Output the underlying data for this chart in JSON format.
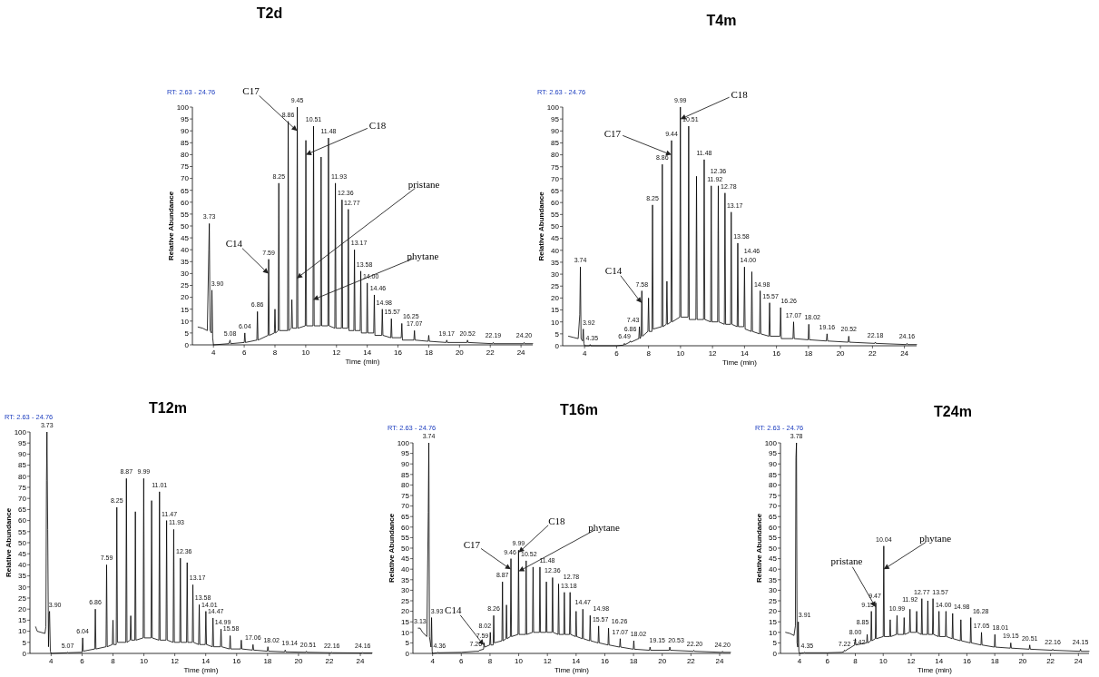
{
  "chart_data": [
    {
      "type": "line",
      "title": "T2d",
      "xlabel": "Time (min)",
      "ylabel": "Relative Abundance",
      "xlim": [
        2.63,
        24.76
      ],
      "ylim": [
        0,
        100
      ],
      "xticks": [
        4,
        6,
        8,
        10,
        12,
        14,
        16,
        18,
        20,
        22,
        24
      ],
      "yticks": [
        0,
        5,
        10,
        15,
        20,
        25,
        30,
        35,
        40,
        45,
        50,
        55,
        60,
        65,
        70,
        75,
        80,
        85,
        90,
        95,
        100
      ],
      "series": [
        {
          "color": "#000000",
          "x": [
            3,
            3.3,
            3.6,
            3.7,
            3.73,
            3.78,
            3.87,
            3.9,
            3.95,
            4,
            5,
            5.08,
            5.12,
            6,
            6.04,
            6.08,
            6.82,
            6.86,
            6.9,
            7.55,
            7.59,
            7.63,
            7.96,
            8,
            8.04,
            8.21,
            8.25,
            8.29,
            8.82,
            8.86,
            8.9,
            9.06,
            9.1,
            9.14,
            9.41,
            9.45,
            9.49,
            9.97,
            10.01,
            10.05,
            10.47,
            10.51,
            10.55,
            10.96,
            11,
            11.04,
            11.44,
            11.48,
            11.52,
            11.89,
            11.93,
            11.97,
            12.32,
            12.36,
            12.4,
            12.73,
            12.77,
            12.81,
            13.13,
            13.17,
            13.21,
            13.54,
            13.58,
            13.62,
            13.96,
            14,
            14.04,
            14.42,
            14.46,
            14.5,
            14.94,
            14.98,
            15.02,
            15.53,
            15.57,
            15.61,
            16.21,
            16.25,
            16.29,
            17.03,
            17.07,
            17.11,
            17.96,
            18,
            18.04,
            19.13,
            19.17,
            19.21,
            20.48,
            20.52,
            20.56,
            22.15,
            22.19,
            22.23,
            24.16,
            24.2,
            24.24,
            24.76
          ],
          "values": [
            7.5,
            7,
            6,
            40,
            51,
            6,
            5,
            23,
            3,
            0,
            0.5,
            2,
            0.5,
            1,
            5,
            1,
            2,
            14,
            2,
            4,
            36,
            4,
            5,
            15,
            5,
            6,
            68,
            6,
            6,
            94,
            6,
            7,
            19,
            7,
            7,
            100,
            7,
            8,
            86,
            8,
            8,
            92,
            8,
            8,
            79,
            8,
            8,
            87,
            8,
            7,
            68,
            7,
            7,
            61,
            7,
            7,
            57,
            6,
            6,
            40,
            6,
            6,
            31,
            5,
            5,
            26,
            5,
            5,
            21,
            4,
            4,
            15,
            4,
            3,
            11,
            3,
            3,
            9,
            2,
            2,
            6,
            2,
            1.5,
            4,
            1.5,
            1,
            2,
            1,
            1,
            2,
            1,
            0.5,
            1,
            0.5,
            0.5,
            1,
            0.5,
            0.5
          ]
        }
      ],
      "annotations": [
        "RT: 2.63 - 24.76",
        {
          "text": "C17",
          "x": 9.446,
          "y": 90
        },
        {
          "text": "C18",
          "x": 10.007,
          "y": 80
        },
        {
          "text": "pristane",
          "x": 9.419,
          "y": 28
        },
        {
          "text": "phytane",
          "x": 10.475,
          "y": 19
        },
        {
          "text": "C14",
          "x": 7.583,
          "y": 30
        },
        {
          "text": "3.73",
          "x": 3.73,
          "y": 51
        },
        {
          "text": "3.90",
          "x": 3.9,
          "y": 23
        },
        {
          "text": "5.08",
          "x": 5.08,
          "y": 2
        },
        {
          "text": "6.04",
          "x": 6.04,
          "y": 5
        },
        {
          "text": "6.86",
          "x": 6.86,
          "y": 14
        },
        {
          "text": "7.59",
          "x": 7.59,
          "y": 36
        },
        {
          "text": "8.25",
          "x": 8.25,
          "y": 68
        },
        {
          "text": "8.86",
          "x": 8.86,
          "y": 94
        },
        {
          "text": "9.45",
          "x": 9.45,
          "y": 100
        },
        {
          "text": "10.51",
          "x": 10.51,
          "y": 92
        },
        {
          "text": "11.48",
          "x": 11.48,
          "y": 87
        },
        {
          "text": "11.93",
          "x": 11.93,
          "y": 68
        },
        {
          "text": "12.36",
          "x": 12.36,
          "y": 61
        },
        {
          "text": "12.77",
          "x": 12.77,
          "y": 57
        },
        {
          "text": "13.17",
          "x": 13.17,
          "y": 40
        },
        {
          "text": "13.58",
          "x": 13.58,
          "y": 31
        },
        {
          "text": "14.00",
          "x": 14,
          "y": 26
        },
        {
          "text": "14.46",
          "x": 14.46,
          "y": 21
        },
        {
          "text": "14.98",
          "x": 14.98,
          "y": 15
        },
        {
          "text": "15.57",
          "x": 15.57,
          "y": 11
        },
        {
          "text": "16.25",
          "x": 16.25,
          "y": 9
        },
        {
          "text": "17.07",
          "x": 17.07,
          "y": 6
        },
        {
          "text": "19.17",
          "x": 19.17,
          "y": 2
        },
        {
          "text": "20.52",
          "x": 20.52,
          "y": 2
        },
        {
          "text": "22.19",
          "x": 22.19,
          "y": 1
        },
        {
          "text": "24.20",
          "x": 24.2,
          "y": 1
        }
      ]
    },
    {
      "type": "line",
      "title": "T4m",
      "xlabel": "Time (min)",
      "ylabel": "Relative Abundance",
      "xlim": [
        2.63,
        24.76
      ],
      "ylim": [
        0,
        100
      ],
      "xticks": [
        4,
        6,
        8,
        10,
        12,
        14,
        16,
        18,
        20,
        22,
        24
      ],
      "yticks": [
        0,
        5,
        10,
        15,
        20,
        25,
        30,
        35,
        40,
        45,
        50,
        55,
        60,
        65,
        70,
        75,
        80,
        85,
        90,
        95,
        100
      ],
      "series": [
        {
          "color": "#000000",
          "x": [
            3,
            3.3,
            3.6,
            3.7,
            3.74,
            3.78,
            3.88,
            3.92,
            3.96,
            4,
            4.31,
            4.35,
            4.39,
            6,
            6.45,
            6.49,
            6.53,
            6.82,
            6.86,
            6.9,
            7.39,
            7.43,
            7.47,
            7.54,
            7.58,
            7.62,
            7.96,
            8,
            8.04,
            8.21,
            8.25,
            8.29,
            8.82,
            8.86,
            8.9,
            9.11,
            9.15,
            9.19,
            9.4,
            9.44,
            9.48,
            9.95,
            9.99,
            10.03,
            10.47,
            10.51,
            10.55,
            10.96,
            11,
            11.04,
            11.44,
            11.48,
            11.52,
            11.88,
            11.92,
            11.96,
            12.32,
            12.36,
            12.4,
            12.74,
            12.78,
            12.82,
            13.13,
            13.17,
            13.21,
            13.54,
            13.58,
            13.62,
            13.96,
            14,
            14.04,
            14.42,
            14.46,
            14.5,
            14.94,
            14.98,
            15.02,
            15.53,
            15.57,
            15.61,
            16.22,
            16.26,
            16.3,
            17.03,
            17.07,
            17.11,
            17.98,
            18.02,
            18.06,
            19.12,
            19.16,
            19.2,
            20.48,
            20.52,
            20.56,
            22.14,
            22.18,
            22.22,
            24.12,
            24.16,
            24.2,
            24.76
          ],
          "values": [
            4,
            3.5,
            3,
            13,
            33,
            3,
            2,
            7,
            1,
            0,
            0,
            0.5,
            0,
            0,
            0.3,
            1,
            0.5,
            1.5,
            2,
            1.5,
            3,
            8,
            3,
            4,
            23,
            4,
            6,
            20,
            6,
            6,
            59,
            7,
            8,
            76,
            8,
            9,
            27,
            9,
            10,
            86,
            10,
            12,
            100,
            12,
            12,
            92,
            11,
            11,
            71,
            11,
            11,
            78,
            11,
            10,
            67,
            10,
            10,
            67,
            10,
            9,
            64,
            9,
            9,
            56,
            9,
            8,
            43,
            8,
            8,
            33,
            7,
            6,
            31,
            6,
            5,
            23,
            5,
            4,
            18,
            4,
            4,
            16,
            3,
            3,
            10,
            3,
            2.5,
            9,
            2.5,
            2,
            5,
            2,
            1.5,
            4,
            1.5,
            1,
            1.5,
            1,
            0.5,
            1,
            0.5,
            0.5
          ]
        }
      ],
      "annotations": [
        "RT: 2.63 - 24.76",
        {
          "text": "C17",
          "x": 9.437,
          "y": 80
        },
        {
          "text": "C18",
          "x": 9.988,
          "y": 95
        },
        {
          "text": "C14",
          "x": 7.569,
          "y": 18
        },
        {
          "text": "3.74",
          "x": 3.74,
          "y": 33
        },
        {
          "text": "3.92",
          "x": 3.92,
          "y": 7
        },
        {
          "text": "4.35",
          "x": 4.35,
          "y": 0.5
        },
        {
          "text": "6.49",
          "x": 6.49,
          "y": 1
        },
        {
          "text": "6.86",
          "x": 6.86,
          "y": 2
        },
        {
          "text": "7.43",
          "x": 7.43,
          "y": 8
        },
        {
          "text": "7.58",
          "x": 7.58,
          "y": 23
        },
        {
          "text": "8.25",
          "x": 8.25,
          "y": 59
        },
        {
          "text": "8.86",
          "x": 8.86,
          "y": 76
        },
        {
          "text": "9.44",
          "x": 9.44,
          "y": 86
        },
        {
          "text": "9.99",
          "x": 9.99,
          "y": 100
        },
        {
          "text": "10.51",
          "x": 10.51,
          "y": 92
        },
        {
          "text": "11.48",
          "x": 11.48,
          "y": 78
        },
        {
          "text": "11.92",
          "x": 11.92,
          "y": 67
        },
        {
          "text": "12.36",
          "x": 12.36,
          "y": 67
        },
        {
          "text": "12.78",
          "x": 12.78,
          "y": 64
        },
        {
          "text": "13.17",
          "x": 13.17,
          "y": 56
        },
        {
          "text": "13.58",
          "x": 13.58,
          "y": 43
        },
        {
          "text": "14.00",
          "x": 14,
          "y": 33
        },
        {
          "text": "14.46",
          "x": 14.46,
          "y": 31
        },
        {
          "text": "14.98",
          "x": 14.98,
          "y": 23
        },
        {
          "text": "15.57",
          "x": 15.57,
          "y": 18
        },
        {
          "text": "16.26",
          "x": 16.26,
          "y": 16
        },
        {
          "text": "17.07",
          "x": 17.07,
          "y": 10
        },
        {
          "text": "18.02",
          "x": 18.02,
          "y": 9
        },
        {
          "text": "19.16",
          "x": 19.16,
          "y": 5
        },
        {
          "text": "20.52",
          "x": 20.52,
          "y": 4
        },
        {
          "text": "22.18",
          "x": 22.18,
          "y": 1.5
        },
        {
          "text": "24.16",
          "x": 24.16,
          "y": 1
        }
      ]
    },
    {
      "type": "line",
      "title": "T12m",
      "xlabel": "Time (min)",
      "ylabel": "Relative Abundance",
      "xlim": [
        2.63,
        24.76
      ],
      "ylim": [
        0,
        100
      ],
      "xticks": [
        4,
        6,
        8,
        10,
        12,
        14,
        16,
        18,
        20,
        22,
        24
      ],
      "yticks": [
        0,
        5,
        10,
        15,
        20,
        25,
        30,
        35,
        40,
        45,
        50,
        55,
        60,
        65,
        70,
        75,
        80,
        85,
        90,
        95,
        100
      ],
      "series": [
        {
          "color": "#000000",
          "x": [
            3,
            3.1,
            3.6,
            3.66,
            3.7,
            3.73,
            3.78,
            3.83,
            3.87,
            3.9,
            3.95,
            4,
            5.03,
            5.07,
            5.11,
            6,
            6.04,
            6.08,
            6.82,
            6.86,
            6.9,
            7.55,
            7.59,
            7.63,
            7.96,
            8,
            8.04,
            8.21,
            8.25,
            8.29,
            8.83,
            8.87,
            8.91,
            9.11,
            9.15,
            9.19,
            9.41,
            9.45,
            9.49,
            9.95,
            9.99,
            10.03,
            10.46,
            10.5,
            10.54,
            10.97,
            11.01,
            11.05,
            11.43,
            11.47,
            11.51,
            11.89,
            11.93,
            11.97,
            12.32,
            12.36,
            12.4,
            12.76,
            12.8,
            12.84,
            13.13,
            13.17,
            13.21,
            13.54,
            13.58,
            13.62,
            13.97,
            14.01,
            14.05,
            14.43,
            14.47,
            14.51,
            14.95,
            14.99,
            15.03,
            15.54,
            15.58,
            15.62,
            16.26,
            16.3,
            16.34,
            17.02,
            17.06,
            17.1,
            17.98,
            18.02,
            18.06,
            19.1,
            19.14,
            19.18,
            20.47,
            20.51,
            20.55,
            22.12,
            22.16,
            22.2,
            24.12,
            24.16,
            24.2,
            24.76
          ],
          "values": [
            12,
            10,
            9,
            12,
            78,
            100,
            56,
            3,
            18,
            19,
            1,
            0,
            0.3,
            0.5,
            0.3,
            0.5,
            7,
            1,
            2,
            20,
            2,
            3,
            40,
            3,
            4,
            15,
            4,
            4,
            66,
            5,
            5,
            79,
            5,
            6,
            17,
            6,
            6,
            64,
            6,
            7,
            79,
            7,
            7,
            69,
            7,
            6,
            73,
            6,
            6,
            60,
            6,
            5,
            56,
            5,
            5,
            43,
            5,
            5,
            41,
            5,
            5,
            31,
            5,
            4,
            22,
            4,
            4,
            19,
            4,
            3,
            16,
            3,
            3,
            11,
            3,
            2,
            8,
            2,
            2,
            6,
            2,
            1.5,
            4,
            1.5,
            1,
            3,
            1,
            0.7,
            1.5,
            0.7,
            0.5,
            1,
            0.5,
            0.3,
            0.5,
            0.3,
            0.2,
            0.5,
            0.2,
            0.2
          ]
        }
      ],
      "annotations": [
        "RT: 2.63 - 24.76",
        {
          "text": "3.73",
          "x": 3.73,
          "y": 100
        },
        {
          "text": "3.90",
          "x": 3.9,
          "y": 19
        },
        {
          "text": "5.07",
          "x": 5.07,
          "y": 0.5
        },
        {
          "text": "6.04",
          "x": 6.04,
          "y": 7
        },
        {
          "text": "6.86",
          "x": 6.86,
          "y": 20
        },
        {
          "text": "7.59",
          "x": 7.59,
          "y": 40
        },
        {
          "text": "8.25",
          "x": 8.25,
          "y": 66
        },
        {
          "text": "8.87",
          "x": 8.87,
          "y": 79
        },
        {
          "text": "9.99",
          "x": 9.99,
          "y": 79
        },
        {
          "text": "11.01",
          "x": 11.01,
          "y": 73
        },
        {
          "text": "11.47",
          "x": 11.47,
          "y": 60
        },
        {
          "text": "11.93",
          "x": 11.93,
          "y": 56
        },
        {
          "text": "12.36",
          "x": 12.36,
          "y": 43
        },
        {
          "text": "13.17",
          "x": 13.17,
          "y": 31
        },
        {
          "text": "13.58",
          "x": 13.58,
          "y": 22
        },
        {
          "text": "14.01",
          "x": 14.01,
          "y": 19
        },
        {
          "text": "14.47",
          "x": 14.47,
          "y": 16
        },
        {
          "text": "14.99",
          "x": 14.99,
          "y": 11
        },
        {
          "text": "15.58",
          "x": 15.58,
          "y": 8
        },
        {
          "text": "17.06",
          "x": 17.06,
          "y": 4
        },
        {
          "text": "18.02",
          "x": 18.02,
          "y": 3
        },
        {
          "text": "19.14",
          "x": 19.14,
          "y": 1.5
        },
        {
          "text": "20.51",
          "x": 20.51,
          "y": 1
        },
        {
          "text": "22.16",
          "x": 22.16,
          "y": 0.5
        },
        {
          "text": "24.16",
          "x": 24.16,
          "y": 0.5
        }
      ]
    },
    {
      "type": "line",
      "title": "T16m",
      "xlabel": "Time (min)",
      "ylabel": "Relative Abundance",
      "xlim": [
        2.63,
        24.76
      ],
      "ylim": [
        0,
        100
      ],
      "xticks": [
        4,
        6,
        8,
        10,
        12,
        14,
        16,
        18,
        20,
        22,
        24
      ],
      "yticks": [
        0,
        5,
        10,
        15,
        20,
        25,
        30,
        35,
        40,
        45,
        50,
        55,
        60,
        65,
        70,
        75,
        80,
        85,
        90,
        95,
        100
      ],
      "series": [
        {
          "color": "#000000",
          "x": [
            3,
            3.13,
            3.3,
            3.6,
            3.7,
            3.74,
            3.78,
            3.89,
            3.93,
            3.97,
            4,
            4.32,
            4.36,
            4.4,
            6,
            7,
            7.22,
            7.26,
            7.3,
            7.55,
            7.59,
            7.63,
            7.98,
            8.02,
            8.06,
            8.22,
            8.26,
            8.3,
            8.83,
            8.87,
            8.91,
            9.11,
            9.15,
            9.19,
            9.42,
            9.46,
            9.5,
            9.95,
            9.99,
            10.03,
            10.48,
            10.52,
            10.56,
            10.96,
            11,
            11.04,
            11.44,
            11.48,
            11.52,
            11.89,
            11.93,
            11.97,
            12.32,
            12.36,
            12.4,
            12.74,
            12.78,
            12.82,
            13.14,
            13.18,
            13.22,
            13.54,
            13.58,
            13.62,
            13.96,
            14,
            14.04,
            14.43,
            14.47,
            14.51,
            14.94,
            14.98,
            15.02,
            15.53,
            15.57,
            15.61,
            16.22,
            16.26,
            16.3,
            17.03,
            17.07,
            17.11,
            17.98,
            18.02,
            18.06,
            19.11,
            19.15,
            19.19,
            20.49,
            20.53,
            20.57,
            22.16,
            22.2,
            22.24,
            24.16,
            24.2,
            24.24,
            24.76
          ],
          "values": [
            12,
            12,
            10,
            8,
            67,
            100,
            8,
            3,
            17,
            1,
            0,
            0.3,
            0.5,
            0.3,
            0.5,
            1,
            1,
            1.5,
            1.5,
            2,
            5,
            3,
            4,
            10,
            4,
            4,
            18,
            5,
            6,
            34,
            6,
            7,
            23,
            7,
            8,
            45,
            8,
            9,
            49,
            9,
            9,
            44,
            9,
            10,
            41,
            10,
            10,
            41,
            10,
            10,
            34,
            10,
            10,
            36,
            10,
            9,
            33,
            9,
            9,
            29,
            9,
            9,
            29,
            9,
            8,
            20,
            8,
            7,
            21,
            7,
            6,
            18,
            6,
            5,
            13,
            5,
            4,
            12,
            4,
            3,
            7,
            3,
            2,
            6,
            2,
            1.5,
            3,
            1.5,
            1.5,
            3,
            1.5,
            1,
            1.5,
            1,
            0.5,
            1,
            0.5,
            0.5
          ]
        }
      ],
      "annotations": [
        "RT: 2.63 - 24.76",
        {
          "text": "C14",
          "x": 7.577,
          "y": 4
        },
        {
          "text": "C17",
          "x": 9.455,
          "y": 40
        },
        {
          "text": "C18",
          "x": 9.989,
          "y": 48
        },
        {
          "text": "phytane",
          "x": 10.0,
          "y": 39
        },
        {
          "text": "3.13",
          "x": 3.13,
          "y": 12
        },
        {
          "text": "3.74",
          "x": 3.74,
          "y": 100
        },
        {
          "text": "3.93",
          "x": 3.93,
          "y": 17
        },
        {
          "text": "4.36",
          "x": 4.36,
          "y": 0.5
        },
        {
          "text": "7.26",
          "x": 7.26,
          "y": 1.5
        },
        {
          "text": "7.59",
          "x": 7.59,
          "y": 5
        },
        {
          "text": "8.02",
          "x": 8.02,
          "y": 10
        },
        {
          "text": "8.26",
          "x": 8.26,
          "y": 18
        },
        {
          "text": "8.87",
          "x": 8.87,
          "y": 34
        },
        {
          "text": "9.46",
          "x": 9.46,
          "y": 45
        },
        {
          "text": "9.99",
          "x": 9.99,
          "y": 49
        },
        {
          "text": "10.52",
          "x": 10.52,
          "y": 44
        },
        {
          "text": "11.48",
          "x": 11.48,
          "y": 41
        },
        {
          "text": "12.36",
          "x": 12.36,
          "y": 36
        },
        {
          "text": "12.78",
          "x": 12.78,
          "y": 33
        },
        {
          "text": "13.18",
          "x": 13.18,
          "y": 29
        },
        {
          "text": "14.47",
          "x": 14.47,
          "y": 21
        },
        {
          "text": "14.98",
          "x": 14.98,
          "y": 18
        },
        {
          "text": "15.57",
          "x": 15.57,
          "y": 13
        },
        {
          "text": "16.26",
          "x": 16.26,
          "y": 12
        },
        {
          "text": "17.07",
          "x": 17.07,
          "y": 7
        },
        {
          "text": "18.02",
          "x": 18.02,
          "y": 6
        },
        {
          "text": "19.15",
          "x": 19.15,
          "y": 3
        },
        {
          "text": "20.53",
          "x": 20.53,
          "y": 3
        },
        {
          "text": "22.20",
          "x": 22.2,
          "y": 1.5
        },
        {
          "text": "24.20",
          "x": 24.2,
          "y": 1
        }
      ]
    },
    {
      "type": "line",
      "title": "T24m",
      "xlabel": "Time (min)",
      "ylabel": "Relative Abundance",
      "xlim": [
        2.63,
        24.76
      ],
      "ylim": [
        0,
        100
      ],
      "xticks": [
        4,
        6,
        8,
        10,
        12,
        14,
        16,
        18,
        20,
        22,
        24
      ],
      "yticks": [
        0,
        5,
        10,
        15,
        20,
        25,
        30,
        35,
        40,
        45,
        50,
        55,
        60,
        65,
        70,
        75,
        80,
        85,
        90,
        95,
        100
      ],
      "series": [
        {
          "color": "#000000",
          "x": [
            3,
            3.3,
            3.6,
            3.7,
            3.74,
            3.78,
            3.82,
            3.87,
            3.91,
            3.95,
            4,
            4.31,
            4.35,
            4.39,
            6,
            7,
            7.18,
            7.22,
            7.26,
            7.38,
            7.42,
            7.46,
            7.96,
            8,
            8.04,
            8.81,
            8.85,
            8.89,
            9.11,
            9.15,
            9.19,
            9.43,
            9.47,
            9.51,
            10,
            10.04,
            10.08,
            10.46,
            10.5,
            10.54,
            10.95,
            10.99,
            11.03,
            11.46,
            11.5,
            11.54,
            11.88,
            11.92,
            11.96,
            12.36,
            12.4,
            12.44,
            12.73,
            12.77,
            12.81,
            13.16,
            13.2,
            13.24,
            13.53,
            13.57,
            13.61,
            13.96,
            14,
            14.04,
            14.46,
            14.5,
            14.54,
            14.94,
            14.98,
            15.02,
            15.53,
            15.57,
            15.61,
            16.24,
            16.28,
            16.32,
            17.01,
            17.05,
            17.09,
            17.97,
            18.01,
            18.05,
            19.11,
            19.15,
            19.19,
            20.47,
            20.51,
            20.55,
            22.12,
            22.16,
            22.2,
            24.11,
            24.15,
            24.19,
            24.76
          ],
          "values": [
            10,
            9.5,
            8.5,
            13,
            93,
            100,
            5,
            3,
            15,
            1,
            0,
            0.3,
            0.5,
            0.3,
            0.3,
            0.5,
            0.8,
            1.5,
            1.2,
            1.5,
            2,
            2,
            4,
            7,
            4,
            5,
            9,
            5,
            6,
            20,
            6,
            7,
            24,
            7,
            8,
            51,
            8,
            8,
            16,
            8,
            9,
            18,
            9,
            9,
            17,
            9,
            10,
            21,
            10,
            10,
            20,
            10,
            9,
            26,
            9,
            9,
            25,
            9,
            9,
            26,
            9,
            8,
            20,
            8,
            8,
            20,
            8,
            7,
            19,
            7,
            6,
            16,
            6,
            5,
            17,
            5,
            4,
            10,
            4,
            3,
            9,
            3,
            2.5,
            5,
            2.5,
            2,
            4,
            2,
            1.5,
            2,
            1.5,
            1,
            2,
            1,
            1
          ]
        }
      ],
      "annotations": [
        "RT: 2.63 - 24.76",
        {
          "text": "pristane",
          "x": 9.465,
          "y": 22
        },
        {
          "text": "phytane",
          "x": 10.03,
          "y": 40
        },
        {
          "text": "3.78",
          "x": 3.78,
          "y": 100
        },
        {
          "text": "3.91",
          "x": 3.91,
          "y": 15
        },
        {
          "text": "4.35",
          "x": 4.35,
          "y": 0.5
        },
        {
          "text": "7.22",
          "x": 7.22,
          "y": 1.5
        },
        {
          "text": "7.42",
          "x": 7.42,
          "y": 2
        },
        {
          "text": "8.00",
          "x": 8,
          "y": 7
        },
        {
          "text": "8.85",
          "x": 8.85,
          "y": 9
        },
        {
          "text": "9.15",
          "x": 9.15,
          "y": 20
        },
        {
          "text": "9.47",
          "x": 9.47,
          "y": 24
        },
        {
          "text": "10.04",
          "x": 10.04,
          "y": 51
        },
        {
          "text": "10.99",
          "x": 10.99,
          "y": 18
        },
        {
          "text": "11.92",
          "x": 11.92,
          "y": 21
        },
        {
          "text": "12.77",
          "x": 12.77,
          "y": 26
        },
        {
          "text": "13.57",
          "x": 13.57,
          "y": 26
        },
        {
          "text": "14.00",
          "x": 14,
          "y": 20
        },
        {
          "text": "14.98",
          "x": 14.98,
          "y": 19
        },
        {
          "text": "16.28",
          "x": 16.28,
          "y": 17
        },
        {
          "text": "17.05",
          "x": 17.05,
          "y": 10
        },
        {
          "text": "18.01",
          "x": 18.01,
          "y": 9
        },
        {
          "text": "19.15",
          "x": 19.15,
          "y": 5
        },
        {
          "text": "20.51",
          "x": 20.51,
          "y": 4
        },
        {
          "text": "22.16",
          "x": 22.16,
          "y": 2
        },
        {
          "text": "24.15",
          "x": 24.15,
          "y": 2
        }
      ]
    }
  ]
}
